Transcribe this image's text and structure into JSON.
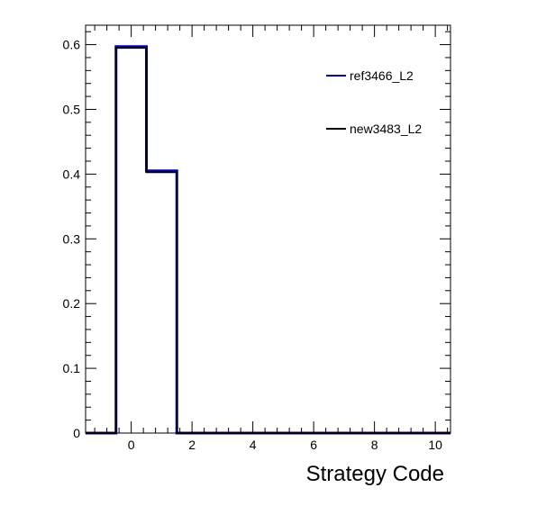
{
  "chart_data": {
    "type": "histogram",
    "title": "",
    "xlabel": "Strategy Code",
    "ylabel": "",
    "xlim": [
      -1.5,
      10.5
    ],
    "ylim": [
      0,
      0.63
    ],
    "grid": false,
    "legend_position": "top-right",
    "bin_edges": [
      -1.5,
      -0.5,
      0.5,
      1.5,
      2.5,
      3.5,
      4.5,
      5.5,
      6.5,
      7.5,
      8.5,
      9.5,
      10.5
    ],
    "x_ticks": [
      0,
      2,
      4,
      6,
      8,
      10
    ],
    "y_ticks": [
      0,
      0.1,
      0.2,
      0.3,
      0.4,
      0.5,
      0.6
    ],
    "series": [
      {
        "name": "ref3466_L2",
        "color": "#0000cc",
        "values": [
          0,
          0.597,
          0.405,
          0,
          0,
          0,
          0,
          0,
          0,
          0,
          0,
          0
        ]
      },
      {
        "name": "new3483_L2",
        "color": "#000000",
        "values": [
          0,
          0.595,
          0.403,
          0,
          0,
          0,
          0,
          0,
          0,
          0,
          0,
          0
        ]
      }
    ]
  }
}
